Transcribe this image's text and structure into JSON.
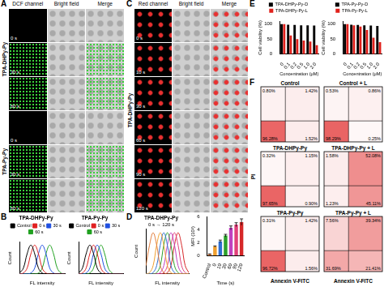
{
  "panel_labels": [
    "A",
    "B",
    "C",
    "D",
    "E",
    "F"
  ],
  "image_panels": [
    {
      "columns": [
        "DCF channel",
        "Bright field",
        "Merge"
      ],
      "groups": [
        {
          "label": "TPA-DHPy-Py",
          "rows": [
            "0 s",
            "30 s",
            "60 s"
          ]
        },
        {
          "label": "TPA-Py-Py",
          "rows": [
            "0 s",
            "30 s",
            "60 s"
          ]
        }
      ]
    },
    {
      "columns": [
        "Red channel",
        "Bright field",
        "Merge"
      ],
      "groups": [
        {
          "label": "TPA-DHPy-Py",
          "rows": [
            "0 s",
            "10 s",
            "30 s",
            "60 s",
            "90 s",
            "120 s"
          ]
        }
      ]
    }
  ],
  "chart_data": [
    {
      "type": "line",
      "title": "TPA-DHPy-Py",
      "x_label": "FL intensity",
      "y_label": "Count",
      "x": [
        0,
        1,
        2,
        3,
        4,
        5,
        6,
        7,
        8,
        9,
        10,
        11,
        12
      ],
      "xlim": [
        0,
        12
      ],
      "ylim": [
        0,
        110
      ],
      "tick_labels": false,
      "grid": false,
      "legend": "top",
      "series": [
        {
          "name": "Control",
          "color": "#000000",
          "values": [
            3,
            20,
            70,
            100,
            70,
            20,
            3,
            0,
            0,
            0,
            0,
            0,
            0
          ]
        },
        {
          "name": "0 s",
          "color": "#e02020",
          "values": [
            0,
            3,
            20,
            70,
            100,
            70,
            20,
            3,
            0,
            0,
            0,
            0,
            0
          ]
        },
        {
          "name": "30 s",
          "color": "#2050e0",
          "values": [
            0,
            0,
            0,
            3,
            20,
            70,
            100,
            70,
            20,
            3,
            0,
            0,
            0
          ]
        },
        {
          "name": "60 s",
          "color": "#20a020",
          "values": [
            0,
            0,
            0,
            0,
            0,
            3,
            20,
            70,
            100,
            70,
            20,
            3,
            0
          ]
        }
      ]
    },
    {
      "type": "line",
      "title": "TPA-Py-Py",
      "x_label": "FL intensity",
      "y_label": "Count",
      "x": [
        0,
        1,
        2,
        3,
        4,
        5,
        6,
        7,
        8,
        9,
        10,
        11,
        12
      ],
      "xlim": [
        0,
        12
      ],
      "ylim": [
        0,
        110
      ],
      "tick_labels": false,
      "grid": false,
      "legend": "top",
      "series": [
        {
          "name": "Control",
          "color": "#000000",
          "values": [
            3,
            20,
            70,
            100,
            70,
            20,
            3,
            0,
            0,
            0,
            0,
            0,
            0
          ]
        },
        {
          "name": "0 s",
          "color": "#e02020",
          "values": [
            0,
            3,
            20,
            70,
            100,
            70,
            20,
            3,
            0,
            0,
            0,
            0,
            0
          ]
        },
        {
          "name": "30 s",
          "color": "#2050e0",
          "values": [
            0,
            0,
            3,
            20,
            70,
            100,
            70,
            20,
            3,
            0,
            0,
            0,
            0
          ]
        },
        {
          "name": "60 s",
          "color": "#20a020",
          "values": [
            0,
            0,
            0,
            3,
            20,
            70,
            100,
            70,
            20,
            3,
            0,
            0,
            0
          ]
        }
      ]
    },
    {
      "type": "line",
      "title": "TPA-DHPy-Py",
      "annotation": "0 s → 120 s",
      "x_label": "FL intensity",
      "y_label": "Count",
      "x": [
        0,
        1,
        2,
        3,
        4,
        5,
        6,
        7,
        8,
        9,
        10,
        11,
        12
      ],
      "xlim": [
        0,
        12
      ],
      "ylim": [
        0,
        110
      ],
      "tick_labels": false,
      "grid": false,
      "series": [
        {
          "color": "#e07b39",
          "values": [
            20,
            70,
            100,
            70,
            20,
            3,
            0,
            0,
            0,
            0,
            0,
            0,
            0
          ]
        },
        {
          "color": "#f0a030",
          "values": [
            0,
            3,
            20,
            70,
            100,
            70,
            20,
            3,
            0,
            0,
            0,
            0,
            0
          ]
        },
        {
          "color": "#2f6fd1",
          "values": [
            0,
            0,
            3,
            20,
            70,
            100,
            70,
            20,
            3,
            0,
            0,
            0,
            0
          ]
        },
        {
          "color": "#2ca02c",
          "values": [
            0,
            0,
            0,
            3,
            20,
            70,
            100,
            70,
            20,
            3,
            0,
            0,
            0
          ]
        },
        {
          "color": "#c040c0",
          "values": [
            0,
            0,
            0,
            0,
            3,
            20,
            70,
            100,
            70,
            20,
            3,
            0,
            0
          ]
        },
        {
          "color": "#e0407a",
          "values": [
            0,
            0,
            0,
            0,
            0,
            3,
            20,
            70,
            100,
            70,
            20,
            3,
            0
          ]
        },
        {
          "color": "#d62728",
          "values": [
            0,
            0,
            0,
            0,
            0,
            0,
            3,
            20,
            70,
            100,
            70,
            20,
            3
          ]
        }
      ]
    },
    {
      "type": "bar",
      "x_label": "Time (s)",
      "y_label": "MFI (10³)",
      "categories": [
        "Control",
        "0",
        "10",
        "30",
        "60",
        "90",
        "120"
      ],
      "values": [
        0.2,
        1.4,
        2.2,
        3.1,
        4.3,
        4.8,
        5.2
      ],
      "errors": [
        0.05,
        0.1,
        0.2,
        0.2,
        0.3,
        0.3,
        0.5
      ],
      "colors": [
        "#e07b39",
        "#f0a030",
        "#2f6fd1",
        "#2ca02c",
        "#c040c0",
        "#e0407a",
        "#d62728"
      ],
      "ylim": [
        0,
        6
      ],
      "yticks": [
        0,
        2,
        4,
        6
      ],
      "grid": false
    },
    {
      "type": "bar",
      "x_label": "Concentration (μM)",
      "y_label": "Cell viability (%)",
      "categories": [
        "0",
        "0.1",
        "0.2",
        "0.5",
        "1.0",
        "2.0"
      ],
      "ylim": [
        0,
        110
      ],
      "yticks": [
        0,
        50,
        100
      ],
      "grid": false,
      "legend": "top",
      "series": [
        {
          "name": "TPA-DHPy-Py-D",
          "color": "#000000",
          "values": [
            100,
            98,
            97,
            96,
            96,
            95
          ]
        },
        {
          "name": "TPA-DHPy-Py-L",
          "color": "#e0201b",
          "values": [
            100,
            62,
            50,
            45,
            42,
            30
          ]
        }
      ]
    },
    {
      "type": "bar",
      "x_label": "Concentration (μM)",
      "y_label": "Cell viability (%)",
      "categories": [
        "0",
        "0.1",
        "0.2",
        "0.5",
        "1.0",
        "2.0"
      ],
      "ylim": [
        0,
        110
      ],
      "yticks": [
        0,
        50,
        100
      ],
      "grid": false,
      "legend": "top",
      "series": [
        {
          "name": "TPA-Py-Py-D",
          "color": "#000000",
          "values": [
            100,
            98,
            97,
            96,
            95,
            94
          ]
        },
        {
          "name": "TPA-Py-Py-L",
          "color": "#e0201b",
          "values": [
            100,
            96,
            92,
            80,
            55,
            40
          ]
        }
      ]
    }
  ],
  "flow_cytometry": {
    "x_label": "Annexin V-FITC",
    "y_label": "PI",
    "plots": [
      {
        "title": "Control",
        "values": [
          0.8,
          1.42,
          96.28,
          1.52
        ],
        "value_labels": [
          "0.80%",
          "1.42%",
          "96.28%",
          "1.52%"
        ]
      },
      {
        "title": "Control + L",
        "values": [
          0.53,
          0.86,
          98.29,
          0.25
        ],
        "value_labels": [
          "0.53%",
          "0.86%",
          "98.29%",
          "0.25%"
        ]
      },
      {
        "title": "TPA-DHPy-Py",
        "values": [
          0.32,
          1.15,
          97.65,
          0.9
        ],
        "value_labels": [
          "0.32%",
          "1.15%",
          "97.65%",
          "0.90%"
        ]
      },
      {
        "title": "TPA-DHPy-Py + L",
        "values": [
          1.58,
          52.08,
          1.23,
          45.11
        ],
        "value_labels": [
          "1.58%",
          "52.08%",
          "1.23%",
          "45.11%"
        ]
      },
      {
        "title": "TPA-Py-Py",
        "values": [
          0.31,
          1.42,
          96.72,
          1.56
        ],
        "value_labels": [
          "0.31%",
          "1.42%",
          "96.72%",
          "1.56%"
        ]
      },
      {
        "title": "TPA-Py-Py + L",
        "values": [
          7.56,
          39.34,
          31.69,
          21.41
        ],
        "value_labels": [
          "7.56%",
          "39.34%",
          "31.69%",
          "21.41%"
        ]
      }
    ]
  }
}
